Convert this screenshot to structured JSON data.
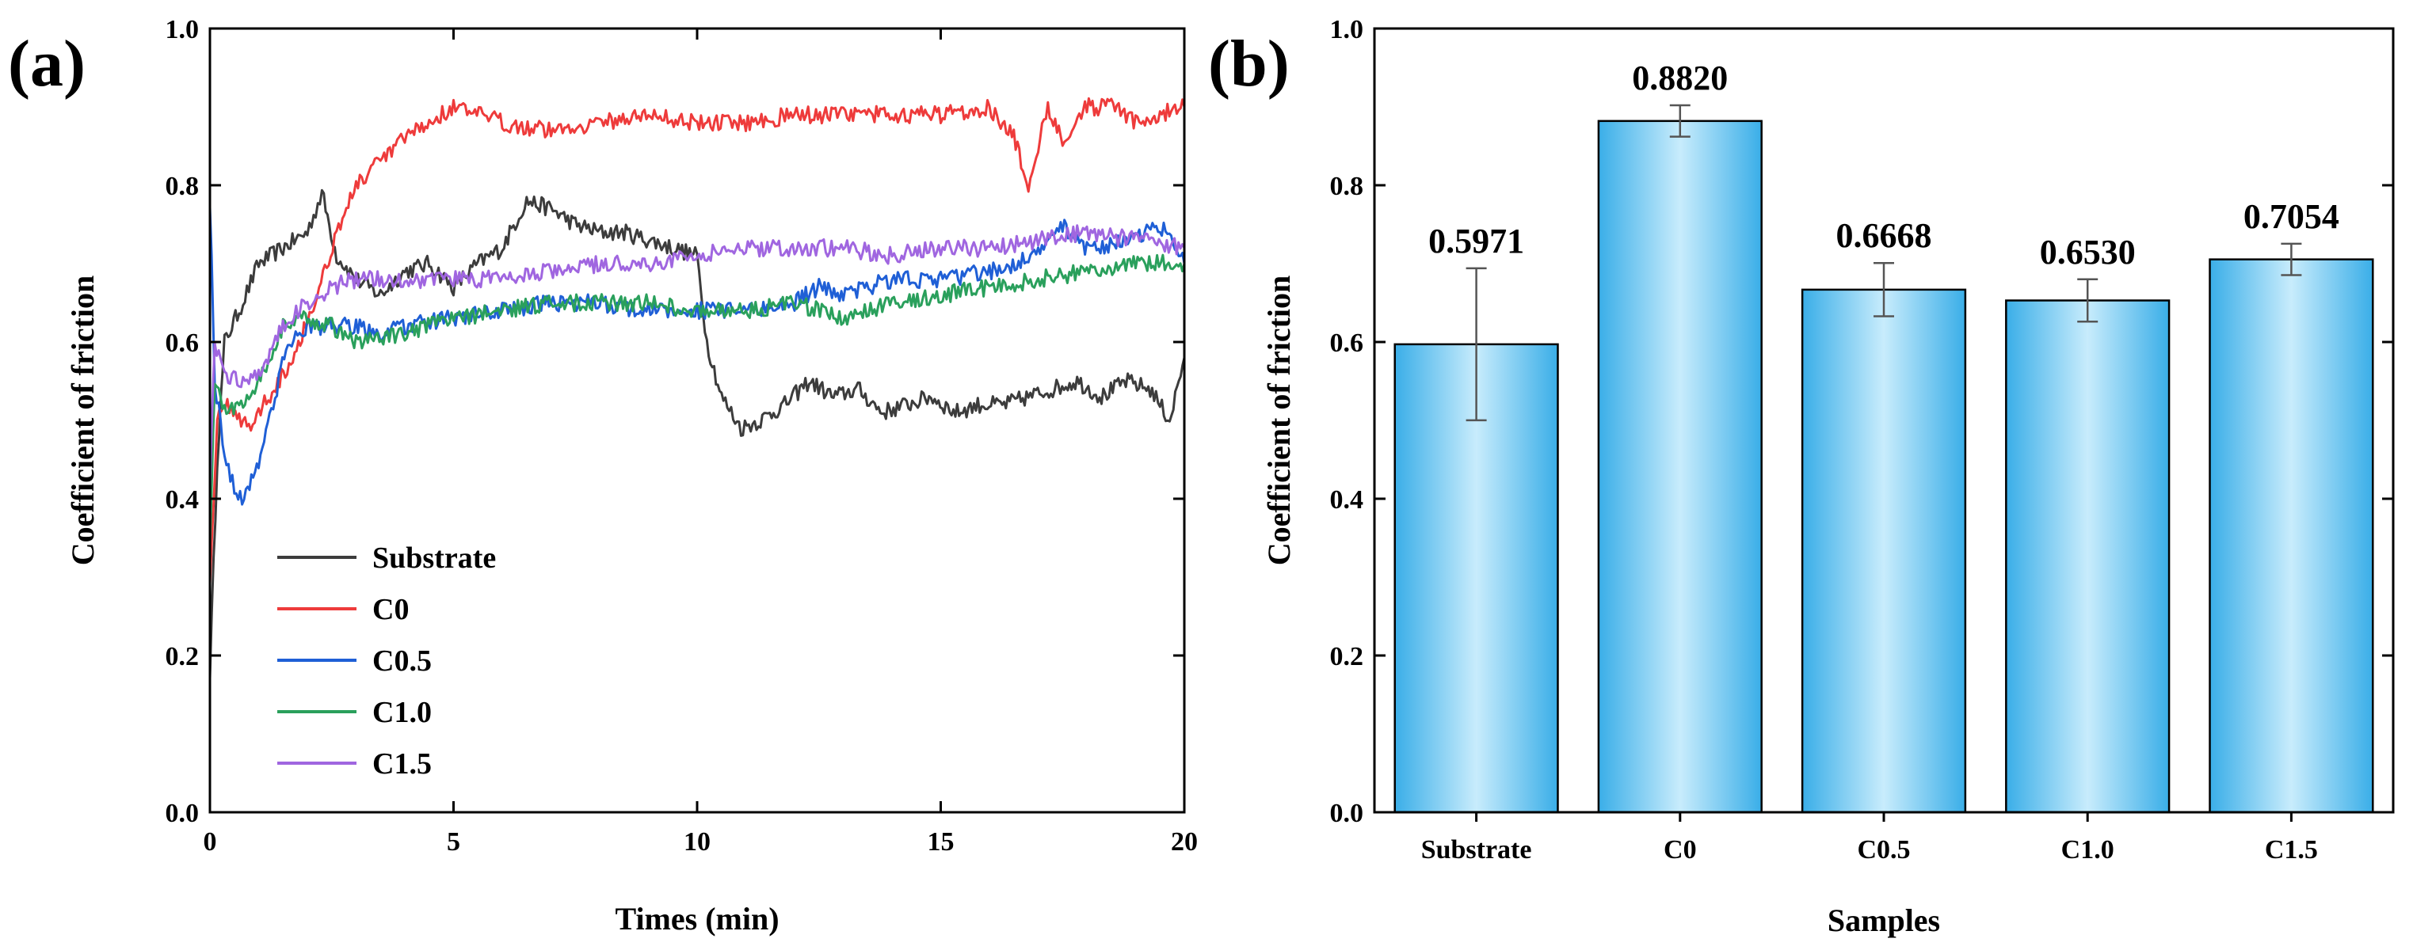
{
  "chart_data": [
    {
      "panel": "(a)",
      "type": "line",
      "xlabel": "Times (min)",
      "ylabel": "Coefficient of friction",
      "xlim": [
        0,
        20
      ],
      "ylim": [
        0.0,
        1.0
      ],
      "x_ticks": [
        "0",
        "5",
        "10",
        "15",
        "20"
      ],
      "y_ticks": [
        "0.0",
        "0.2",
        "0.4",
        "0.6",
        "0.8",
        "1.0"
      ],
      "legend_position": "lower-left",
      "series": [
        {
          "name": "Substrate",
          "color": "#3c3c3c",
          "x": [
            0,
            0.15,
            0.3,
            0.6,
            1.0,
            1.5,
            2.0,
            2.3,
            2.6,
            3.0,
            3.5,
            4.0,
            4.5,
            5.0,
            5.5,
            6.0,
            6.5,
            7.0,
            7.5,
            8.0,
            8.5,
            9.0,
            9.5,
            10.0,
            10.2,
            10.5,
            10.9,
            11.3,
            11.8,
            12.3,
            12.8,
            13.3,
            13.8,
            14.3,
            14.8,
            15.3,
            15.8,
            16.3,
            16.8,
            17.3,
            17.8,
            18.3,
            18.8,
            19.3,
            19.7,
            20.0
          ],
          "values": [
            0.18,
            0.45,
            0.6,
            0.64,
            0.7,
            0.72,
            0.74,
            0.79,
            0.71,
            0.68,
            0.66,
            0.69,
            0.7,
            0.67,
            0.7,
            0.72,
            0.78,
            0.77,
            0.75,
            0.74,
            0.74,
            0.73,
            0.72,
            0.71,
            0.6,
            0.53,
            0.49,
            0.5,
            0.52,
            0.55,
            0.53,
            0.54,
            0.51,
            0.52,
            0.53,
            0.51,
            0.52,
            0.52,
            0.53,
            0.54,
            0.55,
            0.53,
            0.55,
            0.54,
            0.5,
            0.58
          ]
        },
        {
          "name": "C0",
          "color": "#ee3b3b",
          "x": [
            0,
            0.15,
            0.4,
            0.8,
            1.2,
            1.7,
            2.2,
            2.6,
            3.0,
            3.5,
            4.0,
            4.5,
            5.0,
            6.0,
            7.0,
            8.0,
            9.0,
            10.0,
            11.0,
            12.0,
            13.0,
            14.0,
            15.0,
            16.0,
            16.5,
            16.8,
            17.0,
            17.2,
            17.5,
            18.0,
            18.5,
            19.0,
            19.5,
            20.0
          ],
          "values": [
            0.3,
            0.5,
            0.52,
            0.49,
            0.53,
            0.58,
            0.66,
            0.74,
            0.8,
            0.83,
            0.86,
            0.88,
            0.9,
            0.88,
            0.87,
            0.88,
            0.89,
            0.88,
            0.88,
            0.89,
            0.89,
            0.89,
            0.89,
            0.9,
            0.86,
            0.8,
            0.85,
            0.9,
            0.86,
            0.9,
            0.9,
            0.88,
            0.89,
            0.9
          ]
        },
        {
          "name": "C0.5",
          "color": "#1f5fd6",
          "x": [
            0,
            0.1,
            0.3,
            0.5,
            0.7,
            1.0,
            1.3,
            1.6,
            2.0,
            2.5,
            3.0,
            3.5,
            4.0,
            5.0,
            6.0,
            7.0,
            8.0,
            9.0,
            10.0,
            11.0,
            12.0,
            12.5,
            13.0,
            14.0,
            15.0,
            16.0,
            17.0,
            17.5,
            18.0,
            19.0,
            19.5,
            20.0
          ],
          "values": [
            0.78,
            0.55,
            0.46,
            0.41,
            0.4,
            0.45,
            0.52,
            0.6,
            0.62,
            0.62,
            0.62,
            0.61,
            0.62,
            0.63,
            0.64,
            0.65,
            0.65,
            0.64,
            0.64,
            0.64,
            0.65,
            0.67,
            0.66,
            0.68,
            0.68,
            0.69,
            0.71,
            0.75,
            0.72,
            0.73,
            0.75,
            0.7
          ]
        },
        {
          "name": "C1.0",
          "color": "#2aa05c",
          "x": [
            0,
            0.1,
            0.3,
            0.6,
            1.0,
            1.5,
            2.0,
            2.5,
            3.0,
            4.0,
            5.0,
            6.0,
            7.0,
            8.0,
            9.0,
            10.0,
            11.0,
            12.0,
            13.0,
            14.0,
            15.0,
            16.0,
            17.0,
            18.0,
            19.0,
            20.0
          ],
          "values": [
            0.35,
            0.55,
            0.51,
            0.52,
            0.55,
            0.62,
            0.63,
            0.62,
            0.6,
            0.61,
            0.63,
            0.64,
            0.65,
            0.65,
            0.65,
            0.64,
            0.64,
            0.65,
            0.63,
            0.65,
            0.66,
            0.67,
            0.68,
            0.69,
            0.7,
            0.7
          ]
        },
        {
          "name": "C1.5",
          "color": "#a066e0",
          "x": [
            0,
            0.1,
            0.3,
            0.6,
            1.0,
            1.5,
            2.0,
            2.5,
            3.0,
            4.0,
            5.0,
            6.0,
            7.0,
            8.0,
            9.0,
            10.0,
            11.0,
            12.0,
            13.0,
            14.0,
            15.0,
            16.0,
            17.0,
            18.0,
            19.0,
            20.0
          ],
          "values": [
            0.42,
            0.6,
            0.56,
            0.55,
            0.56,
            0.62,
            0.65,
            0.67,
            0.68,
            0.68,
            0.68,
            0.68,
            0.69,
            0.7,
            0.7,
            0.71,
            0.72,
            0.72,
            0.72,
            0.71,
            0.72,
            0.72,
            0.73,
            0.74,
            0.73,
            0.72
          ]
        }
      ]
    },
    {
      "panel": "(b)",
      "type": "bar",
      "xlabel": "Samples",
      "ylabel": "Coefficient of friction",
      "ylim": [
        0.0,
        1.0
      ],
      "y_ticks": [
        "0.0",
        "0.2",
        "0.4",
        "0.6",
        "0.8",
        "1.0"
      ],
      "categories": [
        "Substrate",
        "C0",
        "C0.5",
        "C1.0",
        "C1.5"
      ],
      "values": [
        0.5971,
        0.882,
        0.6668,
        0.653,
        0.7054
      ],
      "value_labels": [
        "0.5971",
        "0.8820",
        "0.6668",
        "0.6530",
        "0.7054"
      ],
      "errors": [
        0.097,
        0.02,
        0.034,
        0.027,
        0.02
      ],
      "bar_color": "#4db8f0"
    }
  ]
}
